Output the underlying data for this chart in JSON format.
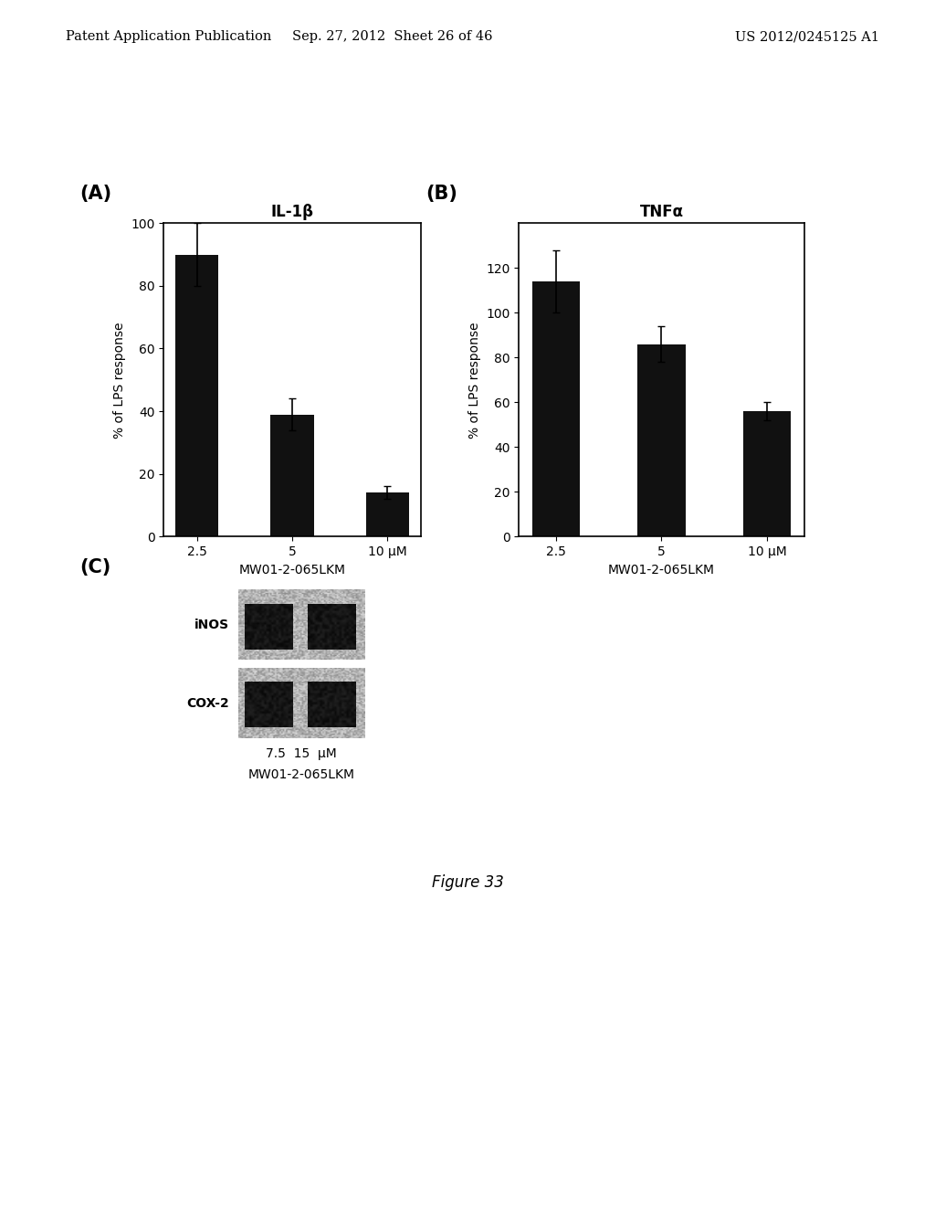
{
  "panel_a": {
    "title": "IL-1β",
    "categories": [
      "2.5",
      "5",
      "10 μM"
    ],
    "values": [
      90,
      39,
      14
    ],
    "errors": [
      10,
      5,
      2
    ],
    "ylabel": "% of LPS response",
    "xlabel": "MW01-2-065LKM",
    "ylim": [
      0,
      100
    ],
    "yticks": [
      0,
      20,
      40,
      60,
      80,
      100
    ]
  },
  "panel_b": {
    "title": "TNFα",
    "categories": [
      "2.5",
      "5",
      "10 μM"
    ],
    "values": [
      114,
      86,
      56
    ],
    "errors": [
      14,
      8,
      4
    ],
    "ylabel": "% of LPS response",
    "xlabel": "MW01-2-065LKM",
    "ylim": [
      0,
      140
    ],
    "yticks": [
      0,
      20,
      40,
      60,
      80,
      100,
      120
    ]
  },
  "panel_c": {
    "row_labels": [
      "iNOS",
      "COX-2"
    ],
    "col_xlabel_line1": "7.5  15  μM",
    "col_xlabel_line2": "MW01-2-065LKM"
  },
  "figure_label": "Figure 33",
  "header_left": "Patent Application Publication",
  "header_center": "Sep. 27, 2012  Sheet 26 of 46",
  "header_right": "US 2012/0245125 A1",
  "bar_color": "#111111",
  "background": "#ffffff"
}
